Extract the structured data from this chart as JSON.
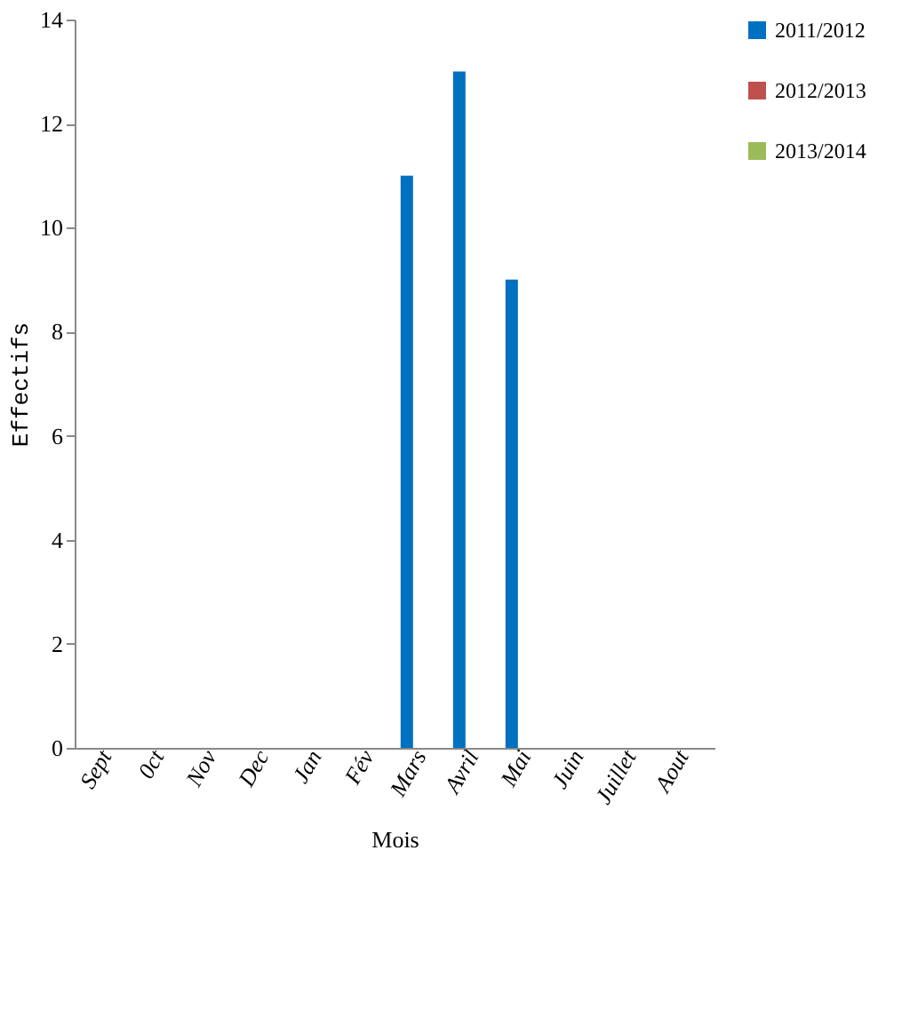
{
  "chart_data": {
    "type": "bar",
    "xlabel": "Mois",
    "ylabel": "Effectifs",
    "categories": [
      "Sept",
      "0ct",
      "Nov",
      "Dec",
      "Jan",
      "Fév",
      "Mars",
      "Avril",
      "Mai",
      "Juin",
      "Juillet",
      "Aout"
    ],
    "series": [
      {
        "name": "2011/2012",
        "color": "#0070c0",
        "values": [
          0,
          0,
          0,
          0,
          0,
          0,
          11,
          13,
          9,
          0,
          0,
          0
        ]
      },
      {
        "name": "2012/2013",
        "color": "#c0504d",
        "values": [
          0,
          0,
          0,
          0,
          0,
          0,
          0,
          0,
          0,
          0,
          0,
          0
        ]
      },
      {
        "name": "2013/2014",
        "color": "#9bbb59",
        "values": [
          0,
          0,
          0,
          0,
          0,
          0,
          0,
          0,
          0,
          0,
          0,
          0
        ]
      }
    ],
    "ylim": [
      0,
      14
    ],
    "yticks": [
      0,
      2,
      4,
      6,
      8,
      10,
      12,
      14
    ],
    "grid": false,
    "legend": "right"
  }
}
